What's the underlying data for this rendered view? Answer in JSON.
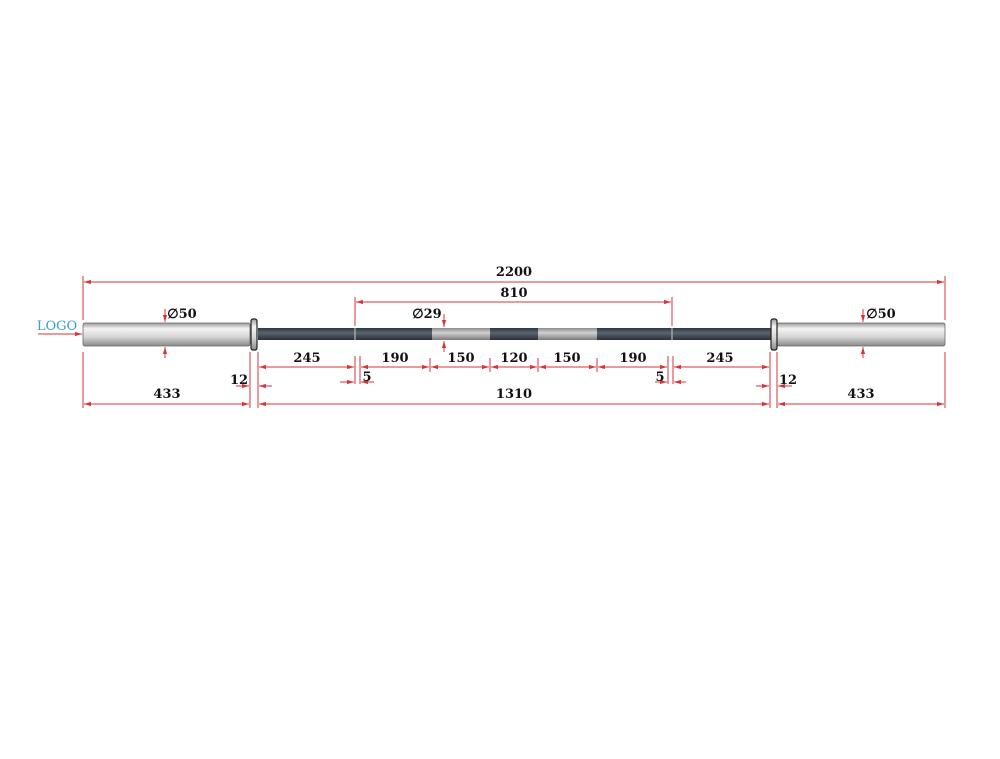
{
  "drawing": {
    "logo_label": "LOGO",
    "colors": {
      "dimension": "#d9333a",
      "logo": "#3a9fc9",
      "shaft": "#4a5560",
      "sleeve": "#d8d8d8"
    },
    "dimensions": {
      "overall_length": "2200",
      "knurl_mark_span": "810",
      "sleeve_diameter_left": "∅50",
      "sleeve_diameter_right": "∅50",
      "shaft_diameter": "∅29",
      "knurl_left": "245",
      "knurl_left_inner": "190",
      "smooth_left": "150",
      "center_knurl": "120",
      "smooth_right": "150",
      "knurl_right_inner": "190",
      "knurl_right": "245",
      "mark_width_left": "5",
      "mark_width_right": "5",
      "collar_left": "12",
      "collar_right": "12",
      "sleeve_left": "433",
      "shaft_length": "1310",
      "sleeve_right": "433"
    }
  }
}
